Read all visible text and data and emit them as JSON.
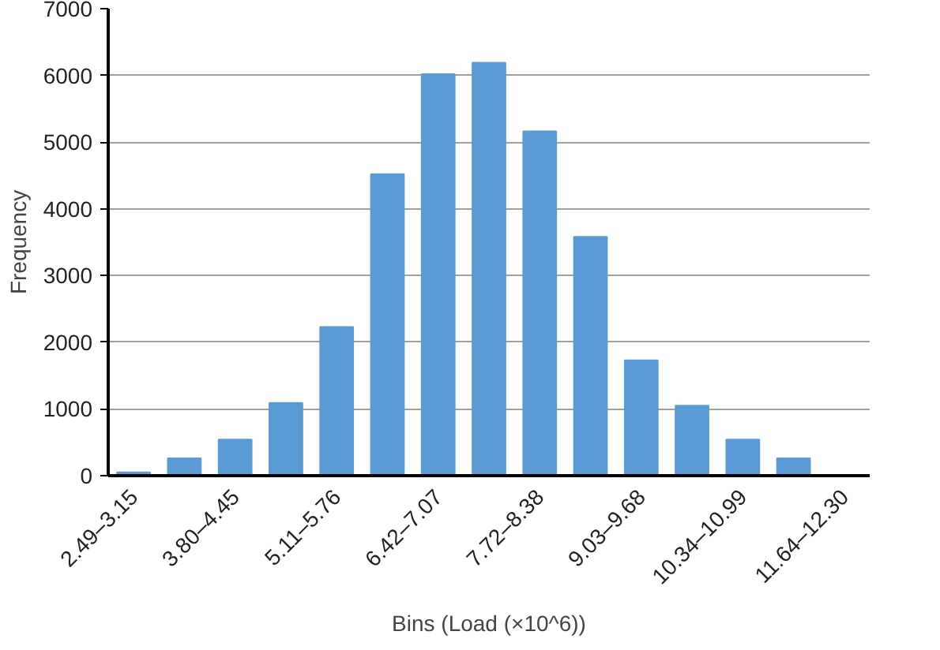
{
  "chart_data": {
    "type": "bar",
    "xlabel": "Bins (Load (×10^6))",
    "ylabel": "Frequency",
    "categories": [
      "2.49–3.15",
      null,
      "3.80–4.45",
      null,
      "5.11–5.76",
      null,
      "6.42–7.07",
      null,
      "7.72–8.38",
      null,
      "9.03–9.68",
      null,
      "10.34–10.99",
      null,
      "11.64–12.30"
    ],
    "values": [
      50,
      260,
      540,
      1090,
      2230,
      4520,
      6020,
      6190,
      5160,
      3580,
      1730,
      1050,
      540,
      260,
      0
    ],
    "color": "#5b9bd5",
    "ylim": [
      0,
      7000
    ],
    "yticks": [
      0,
      1000,
      2000,
      3000,
      4000,
      5000,
      6000,
      7000
    ],
    "grid": "y"
  }
}
